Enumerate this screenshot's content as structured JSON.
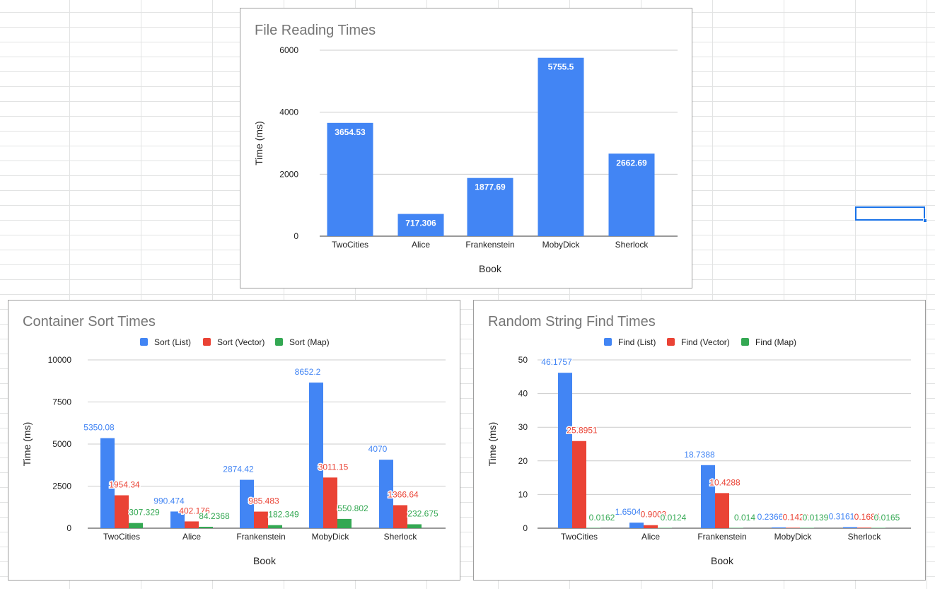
{
  "chart_data": [
    {
      "type": "bar",
      "title": "File Reading Times",
      "xlabel": "Book",
      "ylabel": "Time (ms)",
      "categories": [
        "TwoCities",
        "Alice",
        "Frankenstein",
        "MobyDick",
        "Sherlock"
      ],
      "ylim": [
        0,
        6000
      ],
      "yticks": [
        0,
        2000,
        4000,
        6000
      ],
      "grid": true,
      "legend": "none",
      "series": [
        {
          "values": [
            3654.53,
            717.306,
            1877.69,
            5755.5,
            2662.69
          ],
          "labels": [
            "3654.53",
            "717.306",
            "1877.69",
            "5755.5",
            "2662.69"
          ],
          "color": "#4285f4"
        }
      ]
    },
    {
      "type": "bar",
      "title": "Container Sort Times",
      "xlabel": "Book",
      "ylabel": "Time (ms)",
      "categories": [
        "TwoCities",
        "Alice",
        "Frankenstein",
        "MobyDick",
        "Sherlock"
      ],
      "ylim": [
        0,
        10000
      ],
      "yticks": [
        0,
        2500,
        5000,
        7500,
        10000
      ],
      "grid": true,
      "legend": "top",
      "series": [
        {
          "name": "Sort (List)",
          "values": [
            5350.08,
            990.474,
            2874.42,
            8652.2,
            4070
          ],
          "labels": [
            "5350.08",
            "990.474",
            "2874.42",
            "8652.2",
            "4070"
          ],
          "color": "#4285f4"
        },
        {
          "name": "Sort (Vector)",
          "values": [
            1954.34,
            402.176,
            985.483,
            3011.15,
            1366.64
          ],
          "labels": [
            "1954.34",
            "402.176",
            "985.483",
            "3011.15",
            "1366.64"
          ],
          "color": "#ea4335"
        },
        {
          "name": "Sort (Map)",
          "values": [
            307.329,
            84.2368,
            182.349,
            550.802,
            232.675
          ],
          "labels": [
            "307.329",
            "84.2368",
            "182.349",
            "550.802",
            "232.675"
          ],
          "color": "#34a853"
        }
      ]
    },
    {
      "type": "bar",
      "title": "Random String Find Times",
      "xlabel": "Book",
      "ylabel": "Time (ms)",
      "categories": [
        "TwoCities",
        "Alice",
        "Frankenstein",
        "MobyDick",
        "Sherlock"
      ],
      "ylim": [
        0,
        50
      ],
      "yticks": [
        0,
        10,
        20,
        30,
        40,
        50
      ],
      "grid": true,
      "legend": "top",
      "series": [
        {
          "name": "Find (List)",
          "values": [
            46.1757,
            1.6504,
            18.7388,
            0.2366,
            0.3161
          ],
          "labels": [
            "46.1757",
            "1.6504",
            "18.7388",
            "0.2366",
            "0.3161"
          ],
          "color": "#4285f4"
        },
        {
          "name": "Find (Vector)",
          "values": [
            25.8951,
            0.9003,
            10.4288,
            0.1423,
            0.1684
          ],
          "labels": [
            "25.8951",
            "0.9003",
            "10.4288",
            "0.1423",
            "0.1684"
          ],
          "color": "#ea4335"
        },
        {
          "name": "Find (Map)",
          "values": [
            0.0162,
            0.0124,
            0.014,
            0.0139,
            0.0165
          ],
          "labels": [
            "0.0162",
            "0.0124",
            "0.014",
            "0.0139",
            "0.0165"
          ],
          "color": "#34a853"
        }
      ]
    }
  ]
}
